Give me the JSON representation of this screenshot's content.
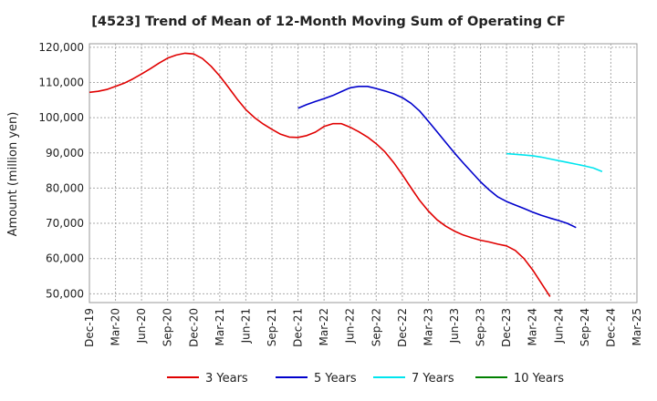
{
  "chart_data": {
    "type": "line",
    "title": "[4523]  Trend of Mean of 12-Month Moving Sum of Operating CF",
    "xlabel": "",
    "ylabel": "Amount (million yen)",
    "ylim": [
      47500,
      121000
    ],
    "yticks": [
      50000,
      60000,
      70000,
      80000,
      90000,
      100000,
      110000,
      120000
    ],
    "ytick_labels": [
      "50,000",
      "60,000",
      "70,000",
      "80,000",
      "90,000",
      "100,000",
      "110,000",
      "120,000"
    ],
    "x_start": "Dec-19",
    "x_end": "Mar-25",
    "x_step_months": 3,
    "x_tick_labels": [
      "Dec-19",
      "Mar-20",
      "Jun-20",
      "Sep-20",
      "Dec-20",
      "Mar-21",
      "Jun-21",
      "Sep-21",
      "Dec-21",
      "Mar-22",
      "Jun-22",
      "Sep-22",
      "Dec-22",
      "Mar-23",
      "Jun-23",
      "Sep-23",
      "Dec-23",
      "Mar-24",
      "Jun-24",
      "Sep-24",
      "Dec-24",
      "Mar-25"
    ],
    "grid": true,
    "legend_position": "bottom",
    "series": [
      {
        "name": "3 Years",
        "color": "#e00000",
        "start_index": 0,
        "values": [
          107200,
          107500,
          108000,
          108900,
          109800,
          111000,
          112400,
          113900,
          115500,
          116900,
          117800,
          118300,
          118100,
          116800,
          114600,
          111800,
          108600,
          105300,
          102300,
          100000,
          98200,
          96700,
          95300,
          94500,
          94400,
          94900,
          95900,
          97500,
          98300,
          98300,
          97300,
          96000,
          94500,
          92600,
          90300,
          87300,
          83800,
          80100,
          76500,
          73500,
          71000,
          69200,
          67800,
          66700,
          65900,
          65200,
          64700,
          64100,
          63600,
          62300,
          60000,
          56800,
          53000,
          49200
        ]
      },
      {
        "name": "5 Years",
        "color": "#0000cc",
        "start_index": 24,
        "values": [
          102700,
          103700,
          104600,
          105400,
          106300,
          107400,
          108500,
          108900,
          108900,
          108300,
          107600,
          106800,
          105700,
          104100,
          101900,
          99000,
          96000,
          93000,
          90000,
          87200,
          84500,
          81800,
          79500,
          77500,
          76200,
          75200,
          74200,
          73200,
          72300,
          71500,
          70800,
          70000,
          68800
        ]
      },
      {
        "name": "7 Years",
        "color": "#00e5ee",
        "start_index": 48,
        "values": [
          89800,
          89600,
          89400,
          89200,
          88800,
          88300,
          87800,
          87300,
          86800,
          86300,
          85700,
          84700
        ]
      },
      {
        "name": "10 Years",
        "color": "#008000",
        "start_index": 60,
        "values": []
      }
    ]
  }
}
